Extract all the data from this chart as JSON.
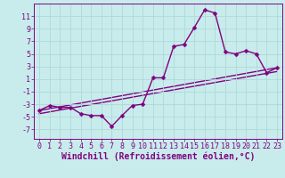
{
  "xlabel": "Windchill (Refroidissement éolien,°C)",
  "background_color": "#c8ecec",
  "grid_color": "#b0d8d8",
  "line_color": "#800080",
  "text_color": "#800080",
  "x_ticks": [
    0,
    1,
    2,
    3,
    4,
    5,
    6,
    7,
    8,
    9,
    10,
    11,
    12,
    13,
    14,
    15,
    16,
    17,
    18,
    19,
    20,
    21,
    22,
    23
  ],
  "y_ticks": [
    -7,
    -5,
    -3,
    -1,
    1,
    3,
    5,
    7,
    9,
    11
  ],
  "ylim": [
    -8.5,
    13.0
  ],
  "xlim": [
    -0.5,
    23.5
  ],
  "series1_x": [
    0,
    1,
    2,
    3,
    4,
    5,
    6,
    7,
    8,
    9,
    10,
    11,
    12,
    13,
    14,
    15,
    16,
    17,
    18,
    19,
    20,
    21,
    22,
    23
  ],
  "series1_y": [
    -4.0,
    -3.2,
    -3.5,
    -3.5,
    -4.5,
    -4.8,
    -4.8,
    -6.5,
    -4.8,
    -3.2,
    -3.0,
    1.2,
    1.2,
    6.2,
    6.5,
    9.2,
    12.0,
    11.5,
    5.3,
    5.0,
    5.5,
    5.0,
    2.0,
    2.8
  ],
  "line1_x": [
    0,
    23
  ],
  "line1_y": [
    -4.0,
    2.8
  ],
  "line2_x": [
    0,
    23
  ],
  "line2_y": [
    -4.5,
    2.2
  ],
  "markersize": 2.5,
  "linewidth": 1.0,
  "xlabel_fontsize": 7,
  "tick_fontsize": 6
}
